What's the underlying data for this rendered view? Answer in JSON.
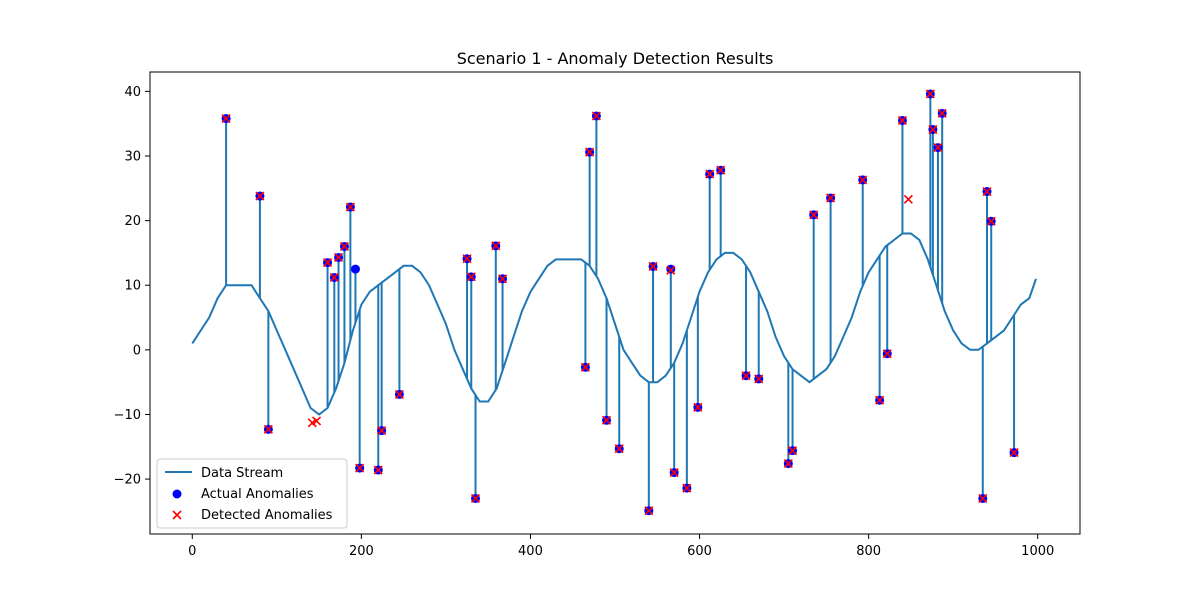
{
  "chart_data": {
    "type": "line",
    "title": "Scenario 1 - Anomaly Detection Results",
    "xlabel": "",
    "ylabel": "",
    "xlim": [
      -50,
      1050
    ],
    "ylim": [
      -28.5,
      43
    ],
    "xticks": [
      0,
      200,
      400,
      600,
      800,
      1000
    ],
    "yticks": [
      -20,
      -10,
      0,
      10,
      20,
      30,
      40
    ],
    "grid": false,
    "legend_position": "lower-left",
    "colors": {
      "line": "#1f77b4",
      "actual": "#0000ff",
      "detected": "#ff0000"
    },
    "series": [
      {
        "name": "Data Stream",
        "x": [
          0,
          10,
          20,
          30,
          40,
          50,
          60,
          70,
          80,
          90,
          100,
          110,
          120,
          130,
          140,
          150,
          160,
          170,
          180,
          190,
          200,
          210,
          220,
          230,
          240,
          250,
          260,
          270,
          280,
          290,
          300,
          310,
          320,
          330,
          340,
          350,
          360,
          370,
          380,
          390,
          400,
          410,
          420,
          430,
          440,
          450,
          460,
          470,
          480,
          490,
          500,
          510,
          520,
          530,
          540,
          550,
          560,
          570,
          580,
          590,
          600,
          610,
          620,
          630,
          640,
          650,
          660,
          670,
          680,
          690,
          700,
          710,
          720,
          730,
          740,
          750,
          760,
          770,
          780,
          790,
          800,
          810,
          820,
          830,
          840,
          850,
          860,
          870,
          880,
          890,
          900,
          910,
          920,
          930,
          940,
          950,
          960,
          970,
          980,
          990,
          998
        ],
        "y": [
          1,
          3,
          5,
          8,
          10,
          10,
          10,
          10,
          8,
          6,
          3,
          0,
          -3,
          -6,
          -9,
          -10,
          -9,
          -6,
          -2,
          3,
          7,
          9,
          10,
          11,
          12,
          13,
          13,
          12,
          10,
          7,
          4,
          0,
          -3,
          -6,
          -8,
          -8,
          -6,
          -2,
          2,
          6,
          9,
          11,
          13,
          14,
          14,
          14,
          14,
          13,
          11,
          8,
          4,
          0,
          -2,
          -4,
          -5,
          -5,
          -4,
          -2,
          1,
          5,
          9,
          12,
          14,
          15,
          15,
          14,
          12,
          9,
          6,
          2,
          -1,
          -3,
          -4,
          -5,
          -4,
          -3,
          -1,
          2,
          5,
          9,
          12,
          14,
          16,
          17,
          18,
          18,
          17,
          14,
          10,
          6,
          3,
          1,
          0,
          0,
          1,
          2,
          3,
          5,
          7,
          8,
          11
        ]
      },
      {
        "name": "Actual Anomalies",
        "x": [
          40,
          80,
          90,
          160,
          168,
          173,
          180,
          187,
          193,
          198,
          220,
          224,
          245,
          325,
          330,
          335,
          359,
          367,
          465,
          470,
          478,
          490,
          505,
          540,
          545,
          566,
          570,
          585,
          598,
          612,
          625,
          655,
          670,
          705,
          710,
          735,
          755,
          793,
          813,
          822,
          840,
          873,
          876,
          882,
          887,
          935,
          940,
          945,
          972
        ],
        "y": [
          35.8,
          23.8,
          -12.3,
          13.5,
          11.2,
          14.3,
          16,
          22.1,
          12.5,
          -18.3,
          -18.6,
          -12.5,
          -6.9,
          14.1,
          11.3,
          -23,
          16.1,
          11,
          -2.7,
          30.6,
          36.2,
          -10.9,
          -15.3,
          -24.9,
          12.9,
          12.5,
          -19,
          -21.4,
          -8.9,
          27.2,
          27.8,
          -4,
          -4.5,
          -17.6,
          -15.6,
          20.9,
          23.5,
          26.3,
          -7.8,
          -0.6,
          35.5,
          39.6,
          34.1,
          31.3,
          36.6,
          -23,
          24.5,
          19.9,
          -15.9
        ]
      },
      {
        "name": "Detected Anomalies",
        "x": [
          40,
          80,
          90,
          142,
          147,
          160,
          168,
          173,
          180,
          187,
          198,
          220,
          224,
          245,
          325,
          330,
          335,
          359,
          367,
          465,
          470,
          478,
          490,
          505,
          540,
          545,
          566,
          570,
          585,
          598,
          612,
          625,
          655,
          670,
          705,
          710,
          735,
          755,
          793,
          813,
          822,
          840,
          847,
          873,
          876,
          882,
          887,
          935,
          940,
          945,
          972
        ],
        "y": [
          35.8,
          23.8,
          -12.3,
          -11.3,
          -11,
          13.5,
          11.2,
          14.3,
          16,
          22.1,
          -18.3,
          -18.6,
          -12.5,
          -6.9,
          14.1,
          11.3,
          -23,
          16.1,
          11,
          -2.7,
          30.6,
          36.2,
          -10.9,
          -15.3,
          -24.9,
          12.9,
          12.3,
          -19,
          -21.4,
          -8.9,
          27.2,
          27.8,
          -4,
          -4.5,
          -17.6,
          -15.6,
          20.9,
          23.5,
          26.3,
          -7.8,
          -0.6,
          35.5,
          23.3,
          39.6,
          34.1,
          31.3,
          36.6,
          -23,
          24.5,
          19.9,
          -15.9
        ]
      }
    ]
  }
}
